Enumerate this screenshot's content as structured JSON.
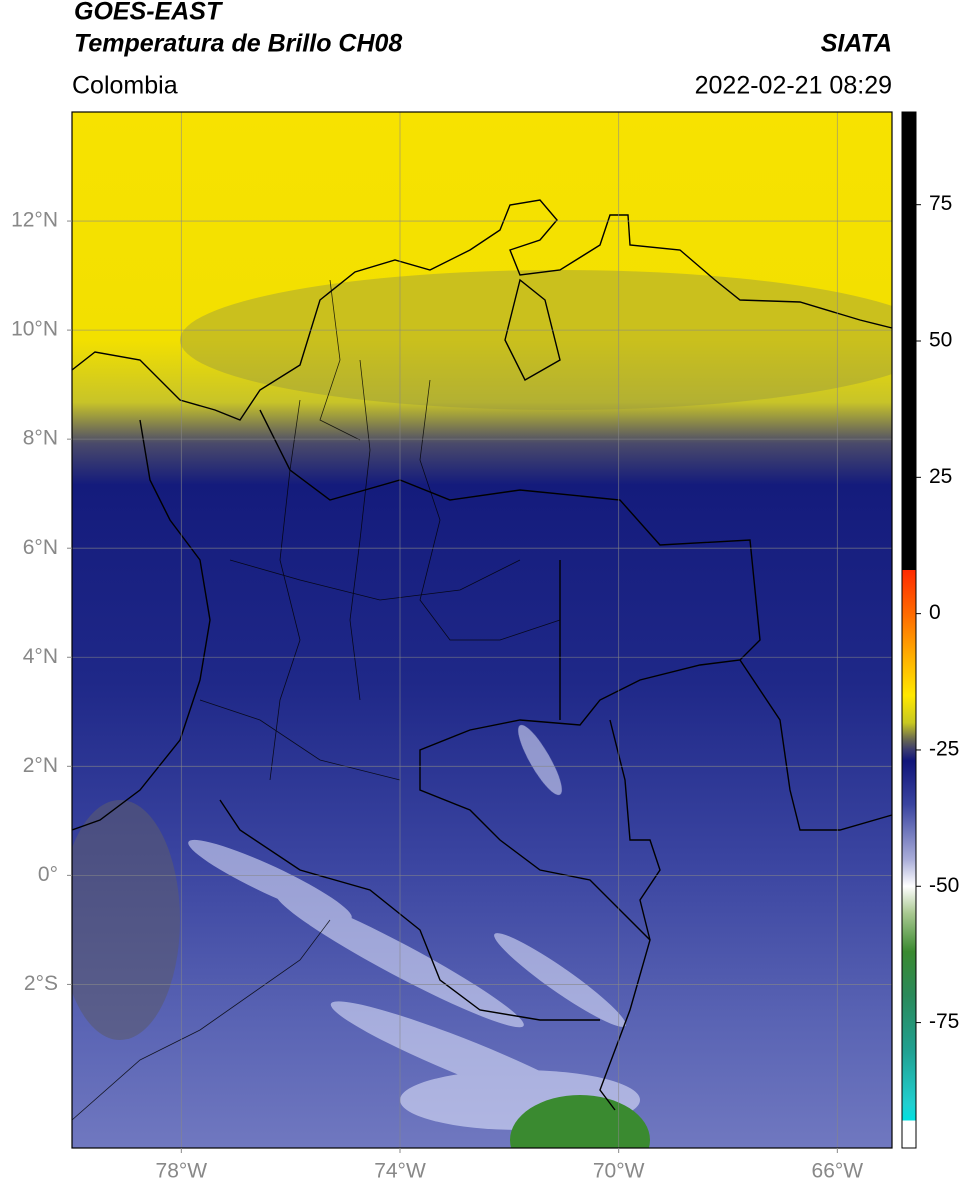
{
  "header": {
    "satellite": "GOES-EAST",
    "product": "Temperatura de Brillo CH08",
    "source": "SIATA",
    "region": "Colombia",
    "datetime": "2022-02-21 08:29"
  },
  "map": {
    "xlim": [
      -80,
      -65
    ],
    "ylim": [
      -5,
      14
    ],
    "xticks": [
      {
        "value": -78,
        "label": "78°W"
      },
      {
        "value": -74,
        "label": "74°W"
      },
      {
        "value": -70,
        "label": "70°W"
      },
      {
        "value": -66,
        "label": "66°W"
      }
    ],
    "yticks": [
      {
        "value": 12,
        "label": "12°N"
      },
      {
        "value": 10,
        "label": "10°N"
      },
      {
        "value": 8,
        "label": "8°N"
      },
      {
        "value": 6,
        "label": "6°N"
      },
      {
        "value": 4,
        "label": "4°N"
      },
      {
        "value": 2,
        "label": "2°N"
      },
      {
        "value": 0,
        "label": "0°"
      },
      {
        "value": -2,
        "label": "2°S"
      }
    ],
    "grid": true
  },
  "colorbar": {
    "ylim": [
      -98,
      92
    ],
    "yticks": [
      75,
      50,
      25,
      0,
      -25,
      -50,
      -75
    ],
    "stops": [
      [
        92,
        "#000000"
      ],
      [
        8,
        "#000000"
      ],
      [
        8,
        "#ff2a00"
      ],
      [
        0,
        "#ff6a00"
      ],
      [
        -8,
        "#ffb000"
      ],
      [
        -15,
        "#ffe800"
      ],
      [
        -20,
        "#c8c820"
      ],
      [
        -23,
        "#6a6a50"
      ],
      [
        -25,
        "#3a3a70"
      ],
      [
        -27,
        "#10157a"
      ],
      [
        -35,
        "#3a44a0"
      ],
      [
        -45,
        "#a8acd8"
      ],
      [
        -50,
        "#ffffff"
      ],
      [
        -55,
        "#a8c890"
      ],
      [
        -62,
        "#3a8a30"
      ],
      [
        -70,
        "#2a8a5a"
      ],
      [
        -80,
        "#20a090"
      ],
      [
        -90,
        "#20d0d0"
      ],
      [
        -93,
        "#00e0e0"
      ],
      [
        -93,
        "#ffffff"
      ],
      [
        -98,
        "#ffffff"
      ]
    ]
  }
}
